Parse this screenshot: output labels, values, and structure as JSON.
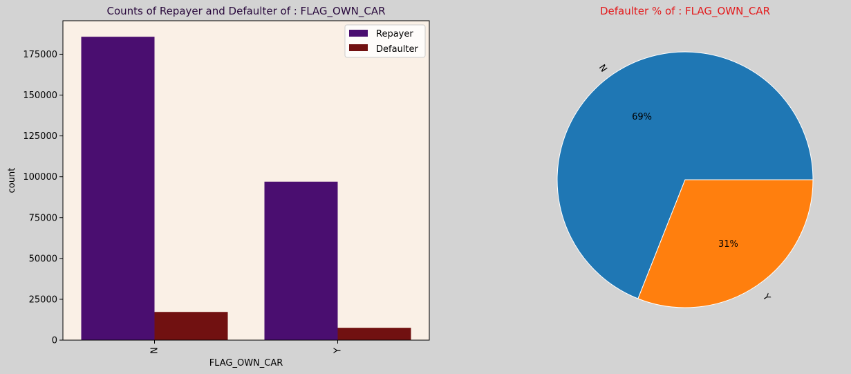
{
  "figure": {
    "background": "#d3d3d3"
  },
  "chart_data": [
    {
      "type": "bar",
      "title": "Counts of Repayer and Defaulter of : FLAG_OWN_CAR",
      "title_color": "#2a0a3d",
      "xlabel": "FLAG_OWN_CAR",
      "ylabel": "count",
      "categories": [
        "N",
        "Y"
      ],
      "series": [
        {
          "name": "Repayer",
          "color": "#4a0e70",
          "values": [
            185700,
            97000
          ]
        },
        {
          "name": "Defaulter",
          "color": "#711111",
          "values": [
            17250,
            7550
          ]
        }
      ],
      "ylim": [
        0,
        195500
      ],
      "yticks": [
        0,
        25000,
        50000,
        75000,
        100000,
        125000,
        150000,
        175000
      ],
      "ytick_labels": [
        "0",
        "25000",
        "50000",
        "75000",
        "100000",
        "125000",
        "150000",
        "175000"
      ],
      "plot_background": "#faf0e6",
      "grid": false,
      "legend_position": "top-right",
      "xtick_rotation": "vertical"
    },
    {
      "type": "pie",
      "title": "Defaulter % of : FLAG_OWN_CAR",
      "title_color": "#e31a1c",
      "labels": [
        "N",
        "Y"
      ],
      "values": [
        69,
        31
      ],
      "value_labels": [
        "69%",
        "31%"
      ],
      "colors": [
        "#1f77b4",
        "#ff7f0e"
      ],
      "edge_color": "#ffffff"
    }
  ]
}
